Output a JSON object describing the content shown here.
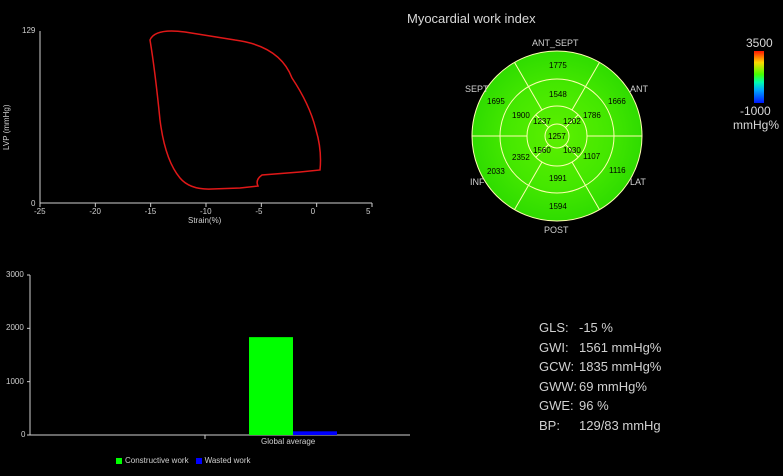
{
  "bullseye": {
    "title": "Myocardial work index",
    "wall_labels": {
      "ant_sept": "ANT_SEPT",
      "sept": "SEPT",
      "ant": "ANT",
      "inf": "INF",
      "lat": "LAT",
      "post": "POST"
    },
    "segments": {
      "basal": [
        "1775",
        "1666",
        "1116",
        "1594",
        "2033",
        "1695"
      ],
      "mid": [
        "1548",
        "1786",
        "1107",
        "1991",
        "2352",
        "1900"
      ],
      "apical": [
        "1202",
        "1030",
        "1560",
        "1237"
      ],
      "apex": "1257"
    },
    "colorbar": {
      "max": "3500",
      "min": "-1000",
      "unit": "mmHg%"
    }
  },
  "loop_plot": {
    "ylabel": "LVP (mmHg)",
    "xlabel": "Strain(%)",
    "y_ticks": [
      "0",
      "129"
    ],
    "x_ticks": [
      "-25",
      "-20",
      "-15",
      "-10",
      "-5",
      "0",
      "5"
    ],
    "xlim": [
      -25,
      5
    ],
    "ylim": [
      0,
      129
    ],
    "curve_color": "#e01818"
  },
  "chart_data": {
    "type": "bar",
    "categories": [
      "Global average"
    ],
    "series": [
      {
        "name": "Constructive work",
        "values": [
          1835
        ],
        "color": "#00ff00"
      },
      {
        "name": "Wasted work",
        "values": [
          69
        ],
        "color": "#0000ff"
      }
    ],
    "y_ticks": [
      "0",
      "1000",
      "2000",
      "3000"
    ],
    "ylim": [
      0,
      3000
    ],
    "legend_position": "bottom"
  },
  "metrics": [
    {
      "label": "GLS:",
      "value": "-15 %"
    },
    {
      "label": "GWI:",
      "value": "1561 mmHg%"
    },
    {
      "label": "GCW:",
      "value": "1835 mmHg%"
    },
    {
      "label": "GWW:",
      "value": "69 mmHg%"
    },
    {
      "label": "GWE:",
      "value": "96 %"
    },
    {
      "label": "BP:",
      "value": "129/83 mmHg"
    }
  ]
}
